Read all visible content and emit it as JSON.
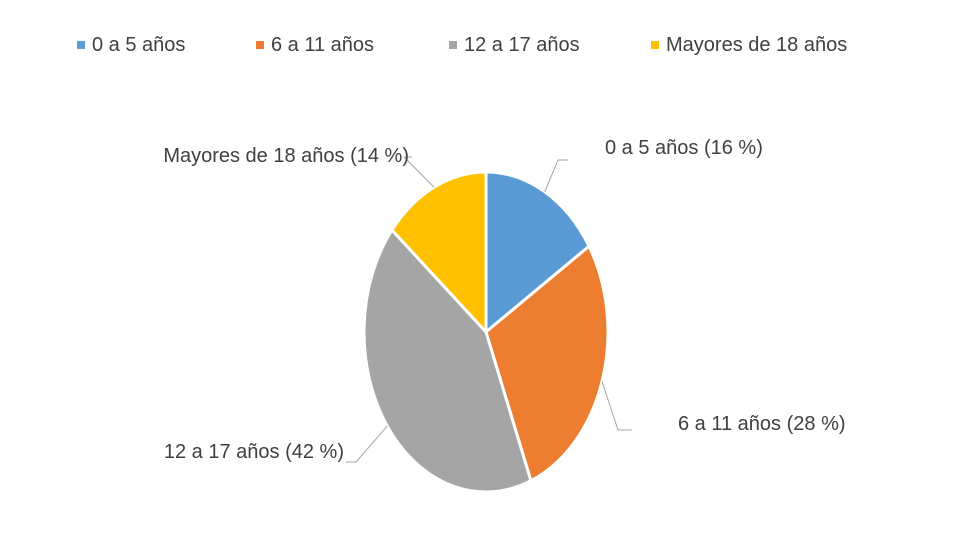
{
  "chart_data": {
    "type": "pie",
    "title": "",
    "legend_position": "top",
    "categories": [
      "0 a 5 años",
      "6 a 11 años",
      "12 a 17 años",
      "Mayores de 18 años"
    ],
    "values": [
      16,
      28,
      42,
      14
    ],
    "unit": "%",
    "colors": [
      "#5B9BD5",
      "#ED7D31",
      "#A5A5A5",
      "#FFC000"
    ],
    "data_labels": [
      "0 a 5 años (16 %)",
      "6 a 11 años (28 %)",
      "12 a 17 años (42 %)",
      "Mayores de 18 años (14 %)"
    ]
  }
}
